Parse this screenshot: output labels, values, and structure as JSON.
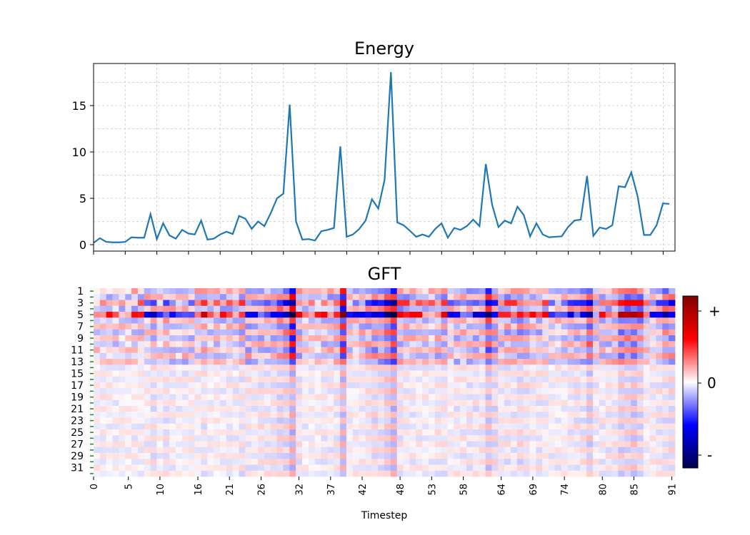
{
  "chart_data": [
    {
      "type": "line",
      "title": "Energy",
      "xlabel": "",
      "ylabel": "",
      "xlim": [
        0,
        92
      ],
      "ylim": [
        -0.5,
        19.5
      ],
      "yticks": [
        0,
        5,
        10,
        15
      ],
      "grid": true,
      "line_color": "#1f77b4",
      "series": [
        {
          "values": [
            0.2,
            0.7,
            0.3,
            0.25,
            0.25,
            0.3,
            0.8,
            0.75,
            0.75,
            3.3,
            0.6,
            2.3,
            1.0,
            0.65,
            1.6,
            1.2,
            1.1,
            2.6,
            0.55,
            0.65,
            1.1,
            1.4,
            1.15,
            3.1,
            2.8,
            1.7,
            2.5,
            2.0,
            3.4,
            5.0,
            5.5,
            15.1,
            2.5,
            0.55,
            0.6,
            0.45,
            1.45,
            1.6,
            1.8,
            10.6,
            0.85,
            1.1,
            1.7,
            2.6,
            4.9,
            3.9,
            7.0,
            18.6,
            2.4,
            2.1,
            1.5,
            0.85,
            1.1,
            0.85,
            1.7,
            2.3,
            0.75,
            1.8,
            1.6,
            2.0,
            2.7,
            2.0,
            8.7,
            4.3,
            1.9,
            2.6,
            2.3,
            4.1,
            3.2,
            0.9,
            2.3,
            1.1,
            0.8,
            0.85,
            0.9,
            1.9,
            2.6,
            2.7,
            7.4,
            0.95,
            1.85,
            1.7,
            2.1,
            6.3,
            6.2,
            7.8,
            5.2,
            1.05,
            1.05,
            2.1,
            4.45,
            4.4
          ]
        }
      ]
    },
    {
      "type": "heatmap",
      "title": "GFT",
      "xlabel": "Timestep",
      "ylabel": "",
      "xticks": [
        "0",
        "5",
        "10",
        "16",
        "21",
        "26",
        "32",
        "37",
        "42",
        "48",
        "53",
        "58",
        "64",
        "69",
        "74",
        "80",
        "85",
        "91"
      ],
      "yticks": [
        "1",
        "3",
        "5",
        "7",
        "9",
        "11",
        "13",
        "15",
        "17",
        "19",
        "21",
        "23",
        "25",
        "27",
        "29",
        "31"
      ],
      "rows": 32,
      "columns": 92,
      "colormap": "seismic",
      "colorbar_labels": [
        "+",
        "0",
        "-"
      ],
      "value_range": [
        -1,
        1
      ]
    }
  ]
}
